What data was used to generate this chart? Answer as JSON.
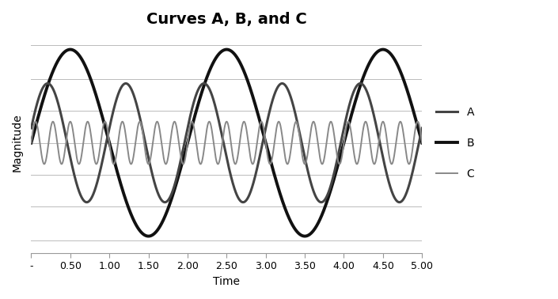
{
  "title": "Curves A, B, and C",
  "xlabel": "Time",
  "ylabel": "Magnitude",
  "xlim": [
    0,
    5.0
  ],
  "ylim": [
    -1.3,
    1.3
  ],
  "xticks": [
    0.0,
    0.5,
    1.0,
    1.5,
    2.0,
    2.5,
    3.0,
    3.5,
    4.0,
    4.5,
    5.0
  ],
  "xtick_labels": [
    "-",
    "0.50",
    "1.00",
    "1.50",
    "2.00",
    "2.50",
    "3.00",
    "3.50",
    "4.00",
    "4.50",
    "5.00"
  ],
  "yticks": [
    -1.15,
    -0.75,
    -0.38,
    0.0,
    0.38,
    0.75,
    1.15
  ],
  "curve_A": {
    "freq": 1.0,
    "amplitude": 0.7,
    "phase": 0.25,
    "color": "#444444",
    "linewidth": 2.2,
    "label": "A"
  },
  "curve_B": {
    "freq": 0.5,
    "amplitude": 1.1,
    "phase": 0.0,
    "color": "#111111",
    "linewidth": 2.8,
    "label": "B"
  },
  "curve_C": {
    "freq": 4.5,
    "amplitude": 0.25,
    "phase": 0.0,
    "color": "#888888",
    "linewidth": 1.4,
    "label": "C"
  },
  "background_color": "#ffffff",
  "grid_color": "#bbbbbb",
  "title_fontsize": 14,
  "axis_label_fontsize": 10,
  "tick_fontsize": 9,
  "legend_fontsize": 10
}
